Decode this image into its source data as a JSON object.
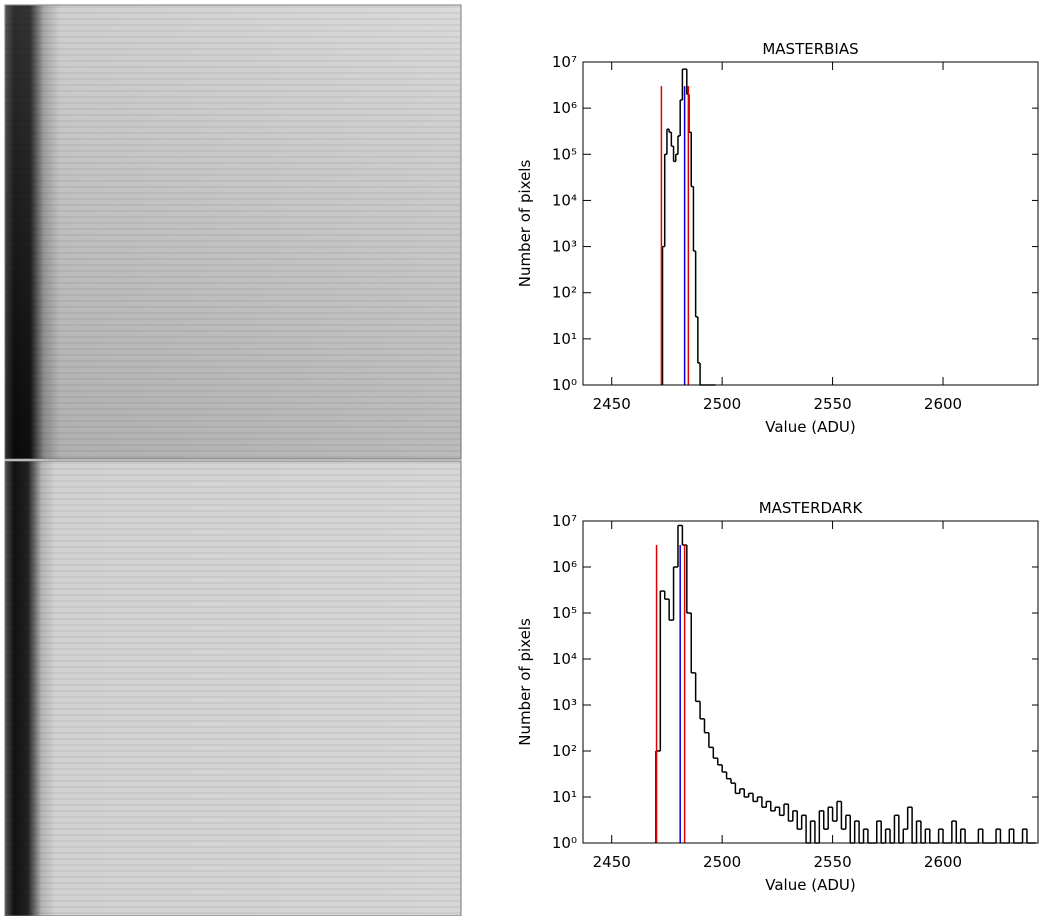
{
  "chart_data": [
    {
      "type": "histogram",
      "title": "MASTERBIAS",
      "x_label": "Value (ADU)",
      "y_label": "Number of  pixels",
      "log_y": true,
      "color": "#000000",
      "bins": [
        2473,
        2474,
        2475,
        2476,
        2477,
        2478,
        2479,
        2480,
        2481,
        2482,
        2483,
        2484,
        2485,
        2486,
        2487,
        2488,
        2489,
        2490,
        2491,
        2492,
        2493,
        2494,
        2495,
        2496,
        2497
      ],
      "counts": [
        1000,
        100000,
        350000,
        300000,
        150000,
        70000,
        100000,
        250000,
        1500000,
        7000000,
        7000000,
        2000000,
        300000,
        20000,
        800,
        30,
        3,
        1,
        1,
        1,
        1,
        1,
        1,
        1
      ],
      "xlim": [
        2437,
        2643
      ],
      "xticks": [
        2450,
        2500,
        2550,
        2600
      ],
      "ylim": [
        1,
        10000000
      ],
      "yticks": [
        {
          "value": 1,
          "label": "10⁰"
        },
        {
          "value": 10,
          "label": "10¹"
        },
        {
          "value": 100,
          "label": "10²"
        },
        {
          "value": 1000,
          "label": "10³"
        },
        {
          "value": 10000,
          "label": "10⁴"
        },
        {
          "value": 100000,
          "label": "10⁵"
        },
        {
          "value": 1000000,
          "label": "10⁶"
        },
        {
          "value": 10000000,
          "label": "10⁷"
        }
      ],
      "markers": [
        {
          "x": 2472.5,
          "color": "#e00000"
        },
        {
          "x": 2483,
          "color": "#0000e0"
        },
        {
          "x": 2484.7,
          "color": "#e00000"
        }
      ],
      "marker_top": 3000000
    },
    {
      "type": "histogram",
      "title": "MASTERDARK",
      "x_label": "Value (ADU)",
      "y_label": "Number of  pixels",
      "log_y": true,
      "color": "#000000",
      "bins": [
        2470,
        2472,
        2474,
        2476,
        2478,
        2480,
        2482,
        2484,
        2486,
        2488,
        2490,
        2492,
        2494,
        2496,
        2498,
        2500,
        2502,
        2504,
        2506,
        2508,
        2510,
        2512,
        2514,
        2516,
        2518,
        2520,
        2522,
        2524,
        2526,
        2528,
        2530,
        2532,
        2534,
        2536,
        2538,
        2540,
        2542,
        2544,
        2546,
        2548,
        2550,
        2552,
        2554,
        2556,
        2558,
        2560,
        2562,
        2564,
        2566,
        2568,
        2570,
        2572,
        2574,
        2576,
        2578,
        2580,
        2582,
        2584,
        2586,
        2588,
        2590,
        2592,
        2594,
        2596,
        2598,
        2600,
        2602,
        2604,
        2606,
        2608,
        2610,
        2612,
        2614,
        2616,
        2618,
        2620,
        2622,
        2624,
        2626,
        2628,
        2630,
        2632,
        2634,
        2636,
        2638,
        2640,
        2642
      ],
      "counts": [
        100,
        300000,
        200000,
        70000,
        1000000,
        8000000,
        3000000,
        100000,
        5000,
        1200,
        500,
        250,
        120,
        70,
        50,
        35,
        25,
        20,
        12,
        15,
        10,
        12,
        8,
        10,
        6,
        8,
        5,
        6,
        4,
        7,
        3,
        5,
        2,
        4,
        1,
        3,
        1,
        5,
        2,
        6,
        3,
        8,
        2,
        4,
        1,
        3,
        1,
        2,
        1,
        1,
        3,
        1,
        2,
        1,
        4,
        1,
        2,
        6,
        1,
        3,
        1,
        2,
        1,
        1,
        2,
        1,
        1,
        3,
        1,
        2,
        1,
        1,
        1,
        2,
        1,
        1,
        1,
        2,
        1,
        1,
        2,
        1,
        1,
        2,
        1,
        1
      ],
      "xlim": [
        2437,
        2643
      ],
      "xticks": [
        2450,
        2500,
        2550,
        2600
      ],
      "ylim": [
        1,
        10000000
      ],
      "yticks": [
        {
          "value": 1,
          "label": "10⁰"
        },
        {
          "value": 10,
          "label": "10¹"
        },
        {
          "value": 100,
          "label": "10²"
        },
        {
          "value": 1000,
          "label": "10³"
        },
        {
          "value": 10000,
          "label": "10⁴"
        },
        {
          "value": 100000,
          "label": "10⁵"
        },
        {
          "value": 1000000,
          "label": "10⁶"
        },
        {
          "value": 10000000,
          "label": "10⁷"
        }
      ],
      "markers": [
        {
          "x": 2470.3,
          "color": "#e00000"
        },
        {
          "x": 2481,
          "color": "#0000e0"
        },
        {
          "x": 2483,
          "color": "#e00000"
        }
      ],
      "marker_top": 3000000
    }
  ]
}
